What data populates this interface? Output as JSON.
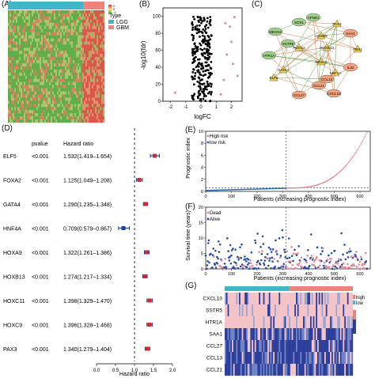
{
  "panel_labels": {
    "A": "(A)",
    "B": "(B)",
    "C": "(C)",
    "D": "(D)",
    "E": "(E)",
    "F": "(F)",
    "G": "(G)"
  },
  "panel_a": {
    "legend_title": "Type",
    "legend_items": [
      {
        "label": "LGG",
        "color": "#42b6c9"
      },
      {
        "label": "GBM",
        "color": "#f08377"
      }
    ],
    "scale_labels": [
      "2",
      "0",
      "-2",
      "-4",
      "-6"
    ]
  },
  "panel_b": {
    "xlabel": "logFC",
    "ylabel": "-log10(fdr)",
    "yticks": [
      "100",
      "80",
      "60",
      "40",
      "20",
      "0"
    ],
    "xticks": [
      "-2",
      "-1",
      "0",
      "1",
      "2"
    ]
  },
  "panel_c": {
    "nodes": [
      "MEOX2",
      "SOX1",
      "CPNE1",
      "PAX3",
      "HOXB9",
      "SAA1",
      "HOXB13",
      "PBX1",
      "SSTR5",
      "FOXG2",
      "HOXA9",
      "HTR1A",
      "IL32",
      "GATA4",
      "CCL27",
      "CCL21",
      "CXCL10",
      "HNF1A",
      "CCL13",
      "ELF5"
    ]
  },
  "chart_data": [
    {
      "type": "forest",
      "columns": {
        "gene": "",
        "pvalue": "pvalue",
        "hr": "Hazard ratio"
      },
      "rows": [
        {
          "gene": "ELF5",
          "p": "<0.001",
          "hr_text": "1.532(1.419–1.654)",
          "hr": 1.532,
          "lo": 1.419,
          "hi": 1.654
        },
        {
          "gene": "FOXA2",
          "p": "<0.001",
          "hr_text": "1.125(1.049–1.208)",
          "hr": 1.125,
          "lo": 1.049,
          "hi": 1.208
        },
        {
          "gene": "GATA4",
          "p": "<0.001",
          "hr_text": "1.290(1.235–1.348)",
          "hr": 1.29,
          "lo": 1.235,
          "hi": 1.348
        },
        {
          "gene": "HNF4A",
          "p": "<0.001",
          "hr_text": "0.709(0.579–0.867)",
          "hr": 0.709,
          "lo": 0.579,
          "hi": 0.867
        },
        {
          "gene": "HOXA9",
          "p": "<0.001",
          "hr_text": "1.322(1.261–1.386)",
          "hr": 1.322,
          "lo": 1.261,
          "hi": 1.386
        },
        {
          "gene": "HOXB13",
          "p": "<0.001",
          "hr_text": "1.274(1.217–1.334)",
          "hr": 1.274,
          "lo": 1.217,
          "hi": 1.334
        },
        {
          "gene": "HOXC11",
          "p": "<0.001",
          "hr_text": "1.398(1.329–1.470)",
          "hr": 1.398,
          "lo": 1.329,
          "hi": 1.47
        },
        {
          "gene": "HOXC9",
          "p": "<0.001",
          "hr_text": "1.396(1.328–1.468)",
          "hr": 1.396,
          "lo": 1.328,
          "hi": 1.468
        },
        {
          "gene": "PAX3",
          "p": "<0.001",
          "hr_text": "1.340(1.279–1.404)",
          "hr": 1.34,
          "lo": 1.279,
          "hi": 1.404
        }
      ],
      "xlabel": "Hazard ratio",
      "xticks": [
        "0.0",
        "0.5",
        "1.0",
        "1.5",
        "2.0"
      ],
      "xlim": [
        0,
        2.0
      ],
      "reference": 1.0
    },
    {
      "type": "scatter",
      "xlabel": "Patients (increasing prognostic index)",
      "ylabel": "Prognostic index",
      "legend": [
        {
          "label": "High risk",
          "color": "#e48a9a"
        },
        {
          "label": "low risk",
          "color": "#2b6cb0"
        }
      ],
      "xticks": [
        "0",
        "100",
        "200",
        "300",
        "400",
        "500",
        "600"
      ],
      "yticks": [
        "10",
        "8",
        "6",
        "4",
        "2",
        "0"
      ],
      "xlim": [
        0,
        640
      ],
      "ylim": [
        0,
        10
      ],
      "cutoff_x": 313,
      "cutoff_y": 0.6
    },
    {
      "type": "scatter",
      "xlabel": "Patients (increasing prognostic index)",
      "ylabel": "Survival time (years)",
      "legend": [
        {
          "label": "Dead",
          "color": "#e48a9a"
        },
        {
          "label": "Alive",
          "color": "#2b4fa0"
        }
      ],
      "xticks": [
        "0",
        "100",
        "200",
        "300",
        "400",
        "500",
        "600"
      ],
      "yticks": [
        "20",
        "15",
        "10",
        "5",
        "0"
      ],
      "xlim": [
        0,
        640
      ],
      "ylim": [
        0,
        20
      ],
      "cutoff_x": 313
    },
    {
      "type": "heatmap",
      "rows": [
        "CXCL10",
        "SSTR5",
        "HTR1A",
        "SAA1",
        "CCL27",
        "CCL13",
        "CCL21"
      ],
      "legend": [
        {
          "label": "high",
          "color": "#f08377"
        },
        {
          "label": "low",
          "color": "#42b6c9"
        }
      ],
      "scale_labels": [
        "3",
        "2",
        "1",
        "0",
        "-1"
      ]
    }
  ]
}
